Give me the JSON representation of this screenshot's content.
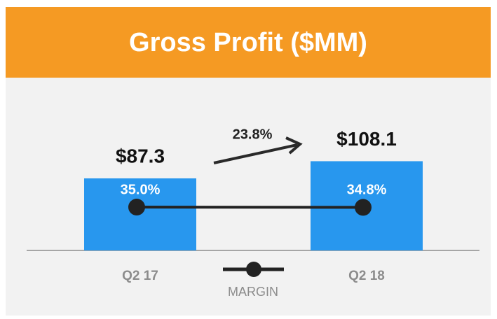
{
  "chart_data": {
    "type": "bar",
    "title": "Gross Profit ($MM)",
    "categories": [
      "Q2 17",
      "Q2 18"
    ],
    "values": [
      87.3,
      108.1
    ],
    "value_labels": [
      "$87.3",
      "$108.1"
    ],
    "color": "#2897ee",
    "ylim": [
      0,
      150
    ],
    "series": [
      {
        "name": "MARGIN",
        "color": "#222222",
        "axis": "y2",
        "values": [
          35.0,
          34.8
        ],
        "value_labels": [
          "35.0%",
          "34.8%"
        ]
      }
    ],
    "y2lim": [
      0,
      100
    ],
    "annotation": "23.8%",
    "grid": false
  }
}
